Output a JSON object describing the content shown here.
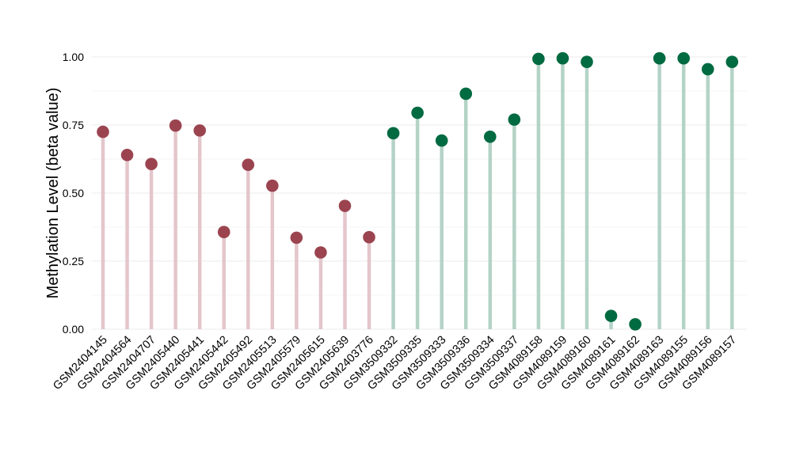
{
  "chart_data": {
    "type": "lollipop",
    "ylabel": "Methylation Level (beta value)",
    "xlabel": "",
    "ylim": [
      0,
      1
    ],
    "yticks": [
      0.0,
      0.25,
      0.5,
      0.75,
      1.0
    ],
    "ytick_labels": [
      "0.00",
      "0.25",
      "0.50",
      "0.75",
      "1.00"
    ],
    "grid": true,
    "colors": {
      "group1_point": "#9b4450",
      "group1_stem": "#e3c6cb",
      "group2_point": "#006a40",
      "group2_stem": "#b4d3c7",
      "grid": "#ebebeb"
    },
    "categories": [
      "GSM2404145",
      "GSM2404564",
      "GSM2404707",
      "GSM2405440",
      "GSM2405441",
      "GSM2405442",
      "GSM2405492",
      "GSM2405513",
      "GSM2405579",
      "GSM2405615",
      "GSM2405639",
      "GSM2403776",
      "GSM3509332",
      "GSM3509335",
      "GSM3509333",
      "GSM3509336",
      "GSM3509334",
      "GSM3509337",
      "GSM4089158",
      "GSM4089159",
      "GSM4089160",
      "GSM4089161",
      "GSM4089162",
      "GSM4089163",
      "GSM4089155",
      "GSM4089156",
      "GSM4089157"
    ],
    "values": [
      0.725,
      0.64,
      0.607,
      0.748,
      0.73,
      0.357,
      0.604,
      0.527,
      0.336,
      0.282,
      0.453,
      0.338,
      0.72,
      0.795,
      0.693,
      0.865,
      0.707,
      0.77,
      0.993,
      0.995,
      0.982,
      0.049,
      0.018,
      0.995,
      0.995,
      0.955,
      0.982
    ],
    "groups": [
      1,
      1,
      1,
      1,
      1,
      1,
      1,
      1,
      1,
      1,
      1,
      1,
      2,
      2,
      2,
      2,
      2,
      2,
      2,
      2,
      2,
      2,
      2,
      2,
      2,
      2,
      2
    ]
  }
}
